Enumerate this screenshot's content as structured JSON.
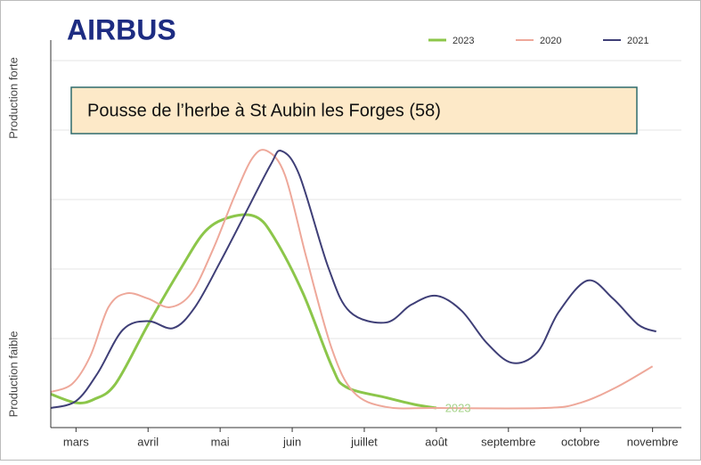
{
  "chart_data": {
    "type": "line",
    "brand": "AIRBUS",
    "title": "Pousse de l’herbe à St Aubin les Forges (58)",
    "y_label_top": "Production forte",
    "y_label_bottom": "Production faible",
    "annotation": {
      "text": "2023",
      "x": 8.3,
      "y": 0,
      "color": "#a5d38a"
    },
    "xlim": [
      2.65,
      11.4
    ],
    "xticks": [
      {
        "value": 3,
        "label": "mars"
      },
      {
        "value": 4,
        "label": "avril"
      },
      {
        "value": 5,
        "label": "mai"
      },
      {
        "value": 6,
        "label": "juin"
      },
      {
        "value": 7,
        "label": "juillet"
      },
      {
        "value": 8,
        "label": "août"
      },
      {
        "value": 9,
        "label": "septembre"
      },
      {
        "value": 10,
        "label": "octobre"
      },
      {
        "value": 11,
        "label": "novembre"
      }
    ],
    "ylim": [
      0,
      100
    ],
    "yticks": [
      0,
      20,
      40,
      60,
      80,
      100
    ],
    "grid": true,
    "legend": "top-right",
    "series": [
      {
        "name": "2023",
        "color": "#8cc64a",
        "x": [
          2.65,
          3,
          3.25,
          3.55,
          4,
          4.45,
          4.8,
          5.15,
          5.5,
          5.75,
          6.15,
          6.55,
          6.75,
          7.3,
          7.7,
          8
        ],
        "values": [
          4,
          1.5,
          2.5,
          7,
          24,
          40,
          51,
          55,
          55,
          49,
          33,
          12,
          6,
          3,
          1,
          0
        ]
      },
      {
        "name": "2020",
        "color": "#eea89a",
        "x": [
          2.65,
          2.95,
          3.2,
          3.45,
          3.7,
          4,
          4.3,
          4.6,
          4.9,
          5.2,
          5.45,
          5.65,
          5.9,
          6.2,
          6.55,
          6.85,
          7.3,
          8,
          9.5,
          10,
          10.5,
          11
        ],
        "values": [
          4.6,
          7,
          15,
          29,
          33,
          31.5,
          29,
          33,
          45.6,
          61,
          72,
          74,
          67,
          43,
          17,
          4.6,
          0.3,
          0,
          0,
          1.5,
          6,
          12
        ]
      },
      {
        "name": "2021",
        "color": "#3f3f77",
        "x": [
          2.65,
          3,
          3.3,
          3.65,
          4,
          4.35,
          4.65,
          5,
          5.35,
          5.7,
          5.85,
          6.1,
          6.5,
          6.8,
          7.3,
          7.65,
          8,
          8.35,
          8.7,
          9.05,
          9.4,
          9.7,
          10.1,
          10.45,
          10.8,
          11.05
        ],
        "values": [
          0,
          2,
          10,
          22.5,
          25,
          23,
          29,
          42,
          56,
          70,
          74,
          67,
          40.5,
          27.7,
          24.6,
          29.7,
          32.3,
          28,
          18.7,
          13,
          16,
          27.7,
          36.7,
          31.5,
          24,
          22
        ]
      }
    ]
  }
}
